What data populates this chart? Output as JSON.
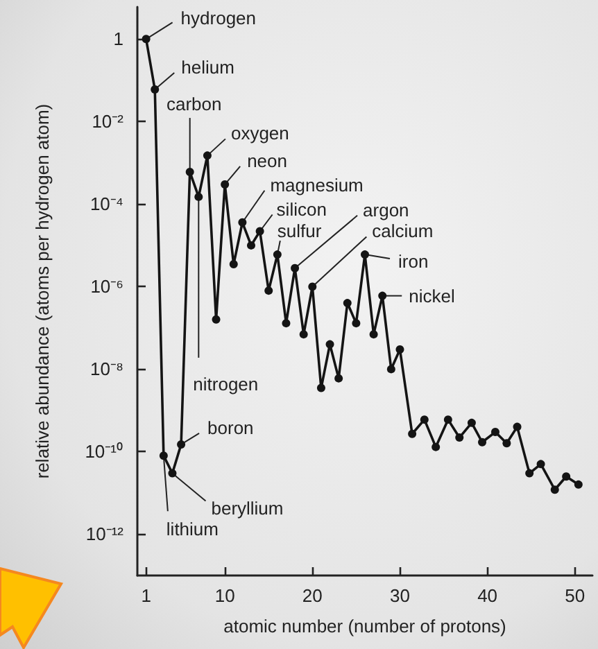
{
  "chart_data": {
    "type": "line",
    "xlabel": "atomic number (number of protons)",
    "ylabel": "relative abundance (atoms per hydrogen atom)",
    "log": "y",
    "grid": false,
    "marker": "circle",
    "line_style": "solid",
    "series": [
      {
        "color": "#141414",
        "x": [
          1,
          2,
          3,
          4,
          5,
          6,
          7,
          8,
          9,
          10,
          11,
          12,
          13,
          14,
          15,
          16,
          17,
          18,
          19,
          20,
          21,
          22,
          23,
          24,
          25,
          26,
          27,
          28,
          29,
          30,
          31.4,
          32.8,
          34.1,
          35.5,
          36.8,
          38.2,
          39.4,
          40.9,
          42.2,
          43.4,
          44.8,
          46.1,
          47.7,
          49.0,
          50.4
        ],
        "values": [
          1,
          0.06,
          8e-11,
          3e-11,
          1.5e-10,
          0.0006,
          0.00015,
          0.0015,
          1.6e-07,
          0.0003,
          3.5e-06,
          3.6e-05,
          1e-05,
          2.2e-05,
          8e-07,
          6e-06,
          1.3e-07,
          2.8e-06,
          7e-08,
          1e-06,
          3.5e-09,
          4e-08,
          6e-09,
          4e-07,
          1.3e-07,
          6e-06,
          7e-08,
          6e-07,
          1e-08,
          3e-08,
          2.7e-10,
          6e-10,
          1.3e-10,
          6e-10,
          2.2e-10,
          5e-10,
          1.7e-10,
          3e-10,
          1.6e-10,
          4e-10,
          3e-11,
          5e-11,
          1.2e-11,
          2.5e-11,
          1.6e-11
        ]
      }
    ],
    "xlim": [
      0,
      52
    ],
    "xticks": [
      1,
      10,
      20,
      30,
      40,
      50
    ],
    "ylim": [
      1e-13,
      6
    ],
    "yticks": [
      {
        "value": 1,
        "label": "1"
      },
      {
        "value": 0.01,
        "label": "10⁻²"
      },
      {
        "value": 0.0001,
        "label": "10⁻⁴"
      },
      {
        "value": 1e-06,
        "label": "10⁻⁶"
      },
      {
        "value": 1e-08,
        "label": "10⁻⁸"
      },
      {
        "value": 1e-10,
        "label": "10⁻¹⁰"
      },
      {
        "value": 1e-12,
        "label": "10⁻¹²"
      }
    ],
    "annotations": [
      {
        "text": "hydrogen",
        "x": 1,
        "y": 1
      },
      {
        "text": "helium",
        "x": 2,
        "y": 0.06
      },
      {
        "text": "carbon",
        "x": 6,
        "y": 0.0006
      },
      {
        "text": "nitrogen",
        "x": 7,
        "y": 0.00015
      },
      {
        "text": "oxygen",
        "x": 8,
        "y": 0.0015
      },
      {
        "text": "neon",
        "x": 10,
        "y": 0.0003
      },
      {
        "text": "magnesium",
        "x": 12,
        "y": 3.6e-05
      },
      {
        "text": "silicon",
        "x": 14,
        "y": 2.2e-05
      },
      {
        "text": "sulfur",
        "x": 16,
        "y": 6e-06
      },
      {
        "text": "argon",
        "x": 18,
        "y": 2.8e-06
      },
      {
        "text": "calcium",
        "x": 20,
        "y": 1e-06
      },
      {
        "text": "iron",
        "x": 26,
        "y": 6e-06
      },
      {
        "text": "nickel",
        "x": 28,
        "y": 6e-07
      },
      {
        "text": "boron",
        "x": 5,
        "y": 1.5e-10
      },
      {
        "text": "beryllium",
        "x": 4,
        "y": 3e-11
      },
      {
        "text": "lithium",
        "x": 3,
        "y": 8e-11
      }
    ]
  }
}
